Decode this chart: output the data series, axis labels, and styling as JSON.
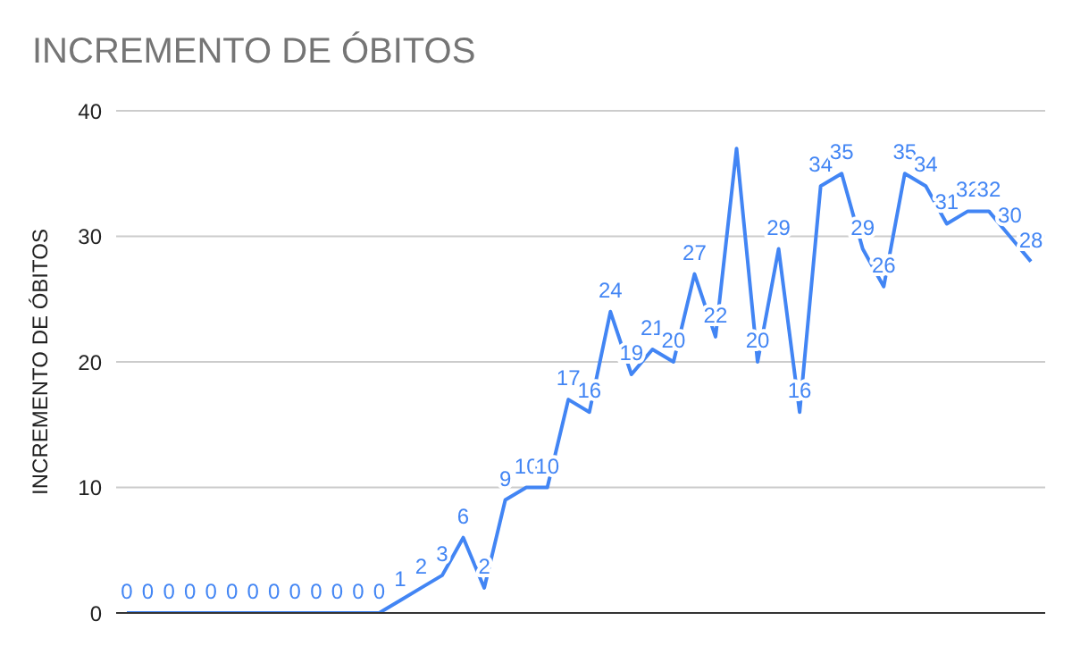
{
  "chart_data": {
    "type": "line",
    "title": "INCREMENTO DE ÓBITOS",
    "ylabel": "INCREMENTO DE ÓBITOS",
    "categories": [
      null,
      null,
      null,
      null,
      null,
      null,
      null,
      null,
      null,
      null,
      null,
      null,
      null,
      null,
      null,
      null,
      null,
      null,
      null,
      null,
      null,
      null,
      null,
      null,
      null,
      null,
      null,
      null,
      null,
      null,
      null,
      null,
      null,
      null,
      null,
      null,
      null,
      null,
      null,
      null,
      null,
      null,
      null,
      null
    ],
    "series": [
      {
        "color": "#4285f4",
        "values": [
          0,
          0,
          0,
          0,
          0,
          0,
          0,
          0,
          0,
          0,
          0,
          0,
          0,
          1,
          2,
          3,
          6,
          2,
          9,
          10,
          10,
          17,
          16,
          24,
          19,
          21,
          20,
          27,
          22,
          37,
          20,
          29,
          16,
          34,
          35,
          29,
          26,
          35,
          34,
          31,
          32,
          32,
          30,
          28
        ],
        "value_labels": [
          "0",
          "0",
          "0",
          "0",
          "0",
          "0",
          "0",
          "0",
          "0",
          "0",
          "0",
          "0",
          "0",
          "1",
          "2",
          "3",
          "6",
          "2",
          "9",
          "10",
          "10",
          "17",
          "16",
          "24",
          "19",
          "21",
          "20",
          "27",
          "22",
          null,
          "20",
          "29",
          "16",
          "34",
          "35",
          "29",
          "26",
          "35",
          "34",
          "31",
          "32",
          "32",
          "30",
          "28"
        ]
      }
    ],
    "ylim": [
      0,
      40
    ],
    "yticks": [
      0,
      10,
      20,
      30,
      40
    ],
    "grid": "y",
    "marker": "none",
    "line_style": "solid"
  }
}
